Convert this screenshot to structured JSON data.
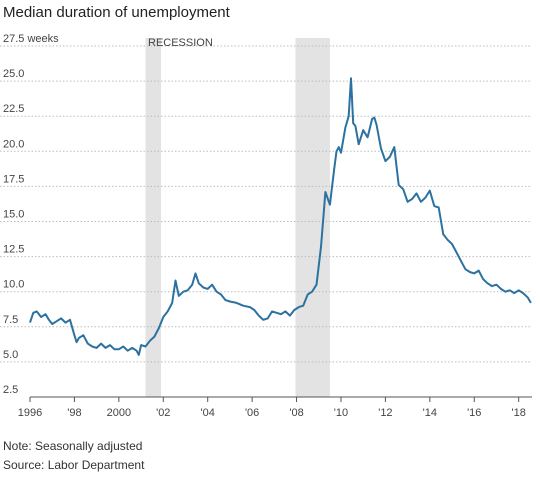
{
  "chart_data": {
    "type": "line",
    "title": "Median duration of unemployment",
    "unit_label": "weeks",
    "recession_label": "RECESSION",
    "xlim": [
      1996,
      2018.6
    ],
    "ylim": [
      2.5,
      27.5
    ],
    "x_ticks": [
      {
        "value": 1996,
        "label": "1996"
      },
      {
        "value": 1998,
        "label": "'98"
      },
      {
        "value": 2000,
        "label": "2000"
      },
      {
        "value": 2002,
        "label": "'02"
      },
      {
        "value": 2004,
        "label": "'04"
      },
      {
        "value": 2006,
        "label": "'06"
      },
      {
        "value": 2008,
        "label": "'08"
      },
      {
        "value": 2010,
        "label": "'10"
      },
      {
        "value": 2012,
        "label": "'12"
      },
      {
        "value": 2014,
        "label": "'14"
      },
      {
        "value": 2016,
        "label": "'16"
      },
      {
        "value": 2018,
        "label": "'18"
      }
    ],
    "y_ticks": [
      {
        "value": 27.5,
        "label": "27.5 weeks"
      },
      {
        "value": 25.0,
        "label": "25.0"
      },
      {
        "value": 22.5,
        "label": "22.5"
      },
      {
        "value": 20.0,
        "label": "20.0"
      },
      {
        "value": 17.5,
        "label": "17.5"
      },
      {
        "value": 15.0,
        "label": "15.0"
      },
      {
        "value": 12.5,
        "label": "12.5"
      },
      {
        "value": 10.0,
        "label": "10.0"
      },
      {
        "value": 7.5,
        "label": "7.5"
      },
      {
        "value": 5.0,
        "label": "5.0"
      },
      {
        "value": 2.5,
        "label": "2.5"
      }
    ],
    "recessions": [
      {
        "start": 2001.2,
        "end": 2001.9
      },
      {
        "start": 2007.95,
        "end": 2009.5
      }
    ],
    "grid": true,
    "series": [
      {
        "color": "#2c72a0",
        "x": [
          1996.0,
          1996.15,
          1996.3,
          1996.5,
          1996.7,
          1996.85,
          1997.0,
          1997.2,
          1997.4,
          1997.6,
          1997.8,
          1998.0,
          1998.1,
          1998.2,
          1998.4,
          1998.6,
          1998.8,
          1999.0,
          1999.2,
          1999.4,
          1999.6,
          1999.8,
          2000.0,
          2000.2,
          2000.4,
          2000.6,
          2000.8,
          2000.9,
          2001.0,
          2001.2,
          2001.4,
          2001.6,
          2001.8,
          2002.0,
          2002.2,
          2002.4,
          2002.55,
          2002.7,
          2002.9,
          2003.1,
          2003.3,
          2003.45,
          2003.6,
          2003.8,
          2004.0,
          2004.2,
          2004.4,
          2004.6,
          2004.8,
          2005.0,
          2005.3,
          2005.6,
          2005.9,
          2006.1,
          2006.3,
          2006.5,
          2006.7,
          2006.9,
          2007.1,
          2007.3,
          2007.5,
          2007.7,
          2007.9,
          2008.1,
          2008.3,
          2008.5,
          2008.7,
          2008.9,
          2009.1,
          2009.3,
          2009.5,
          2009.6,
          2009.7,
          2009.8,
          2009.9,
          2010.0,
          2010.2,
          2010.35,
          2010.45,
          2010.55,
          2010.65,
          2010.8,
          2011.0,
          2011.2,
          2011.4,
          2011.5,
          2011.6,
          2011.8,
          2012.0,
          2012.2,
          2012.4,
          2012.6,
          2012.8,
          2013.0,
          2013.2,
          2013.4,
          2013.6,
          2013.8,
          2014.0,
          2014.2,
          2014.4,
          2014.6,
          2014.8,
          2015.0,
          2015.2,
          2015.4,
          2015.6,
          2015.8,
          2016.0,
          2016.2,
          2016.4,
          2016.6,
          2016.8,
          2017.0,
          2017.2,
          2017.4,
          2017.6,
          2017.8,
          2018.0,
          2018.2,
          2018.4,
          2018.55
        ],
        "y": [
          7.8,
          8.5,
          8.6,
          8.2,
          8.4,
          8.0,
          7.7,
          7.9,
          8.1,
          7.8,
          8.0,
          6.9,
          6.4,
          6.7,
          6.9,
          6.3,
          6.1,
          6.0,
          6.3,
          6.0,
          6.2,
          5.9,
          5.9,
          6.1,
          5.8,
          6.0,
          5.8,
          5.5,
          6.2,
          6.1,
          6.5,
          6.8,
          7.4,
          8.2,
          8.6,
          9.2,
          10.8,
          9.7,
          10.0,
          10.1,
          10.5,
          11.3,
          10.6,
          10.3,
          10.2,
          10.5,
          10.0,
          9.8,
          9.4,
          9.3,
          9.2,
          9.0,
          8.9,
          8.7,
          8.3,
          8.0,
          8.1,
          8.6,
          8.5,
          8.4,
          8.6,
          8.3,
          8.7,
          8.9,
          9.0,
          9.8,
          10.0,
          10.5,
          13.2,
          17.1,
          16.2,
          17.5,
          18.8,
          20.0,
          20.3,
          19.9,
          21.7,
          22.5,
          25.2,
          22.0,
          21.8,
          20.5,
          21.5,
          21.0,
          22.3,
          22.4,
          21.9,
          20.2,
          19.3,
          19.6,
          20.3,
          17.6,
          17.3,
          16.4,
          16.6,
          17.0,
          16.4,
          16.7,
          17.2,
          16.1,
          16.0,
          14.1,
          13.7,
          13.4,
          12.8,
          12.2,
          11.6,
          11.4,
          11.3,
          11.5,
          10.9,
          10.6,
          10.4,
          10.5,
          10.2,
          10.0,
          10.1,
          9.9,
          10.1,
          9.9,
          9.6,
          9.2
        ]
      }
    ]
  },
  "notes": {
    "note": "Note: Seasonally adjusted",
    "source": "Source: Labor Department"
  }
}
